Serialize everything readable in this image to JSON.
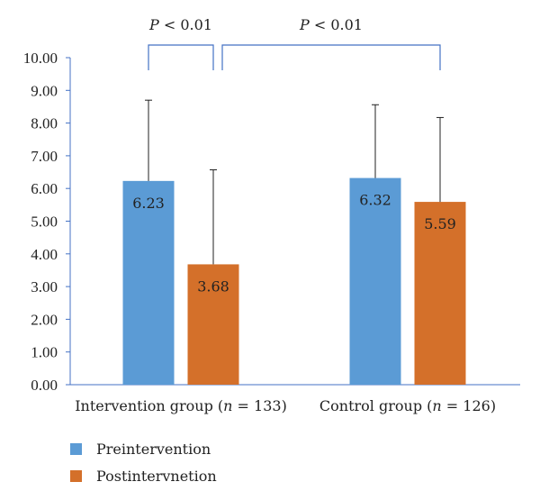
{
  "chart_data": {
    "type": "bar",
    "categories": [
      "Intervention group (n = 133)",
      "Control group (n = 126)"
    ],
    "category_parts": [
      {
        "prefix": "Intervention group (",
        "n": "n",
        "suffix": " = 133)"
      },
      {
        "prefix": "Control group (",
        "n": "n",
        "suffix": " = 126)"
      }
    ],
    "series": [
      {
        "name": "Preintervention",
        "color": "#5b9bd5",
        "values": [
          6.23,
          6.32
        ],
        "labels": [
          "6.23",
          "6.32"
        ],
        "error_upper": [
          8.7,
          8.56
        ]
      },
      {
        "name": "Postintervnetion",
        "color": "#d4702a",
        "values": [
          3.68,
          5.59
        ],
        "labels": [
          "3.68",
          "5.59"
        ],
        "error_upper": [
          6.57,
          8.17
        ]
      }
    ],
    "ylim": [
      0,
      10
    ],
    "yticks": [
      "0.00",
      "1.00",
      "2.00",
      "3.00",
      "4.00",
      "5.00",
      "6.00",
      "7.00",
      "8.00",
      "9.00",
      "10.00"
    ],
    "annotations": [
      {
        "p": "P",
        "text": " < 0.01",
        "from": "Intervention group Preintervention",
        "to": "Intervention group Postintervnetion"
      },
      {
        "p": "P",
        "text": " < 0.01",
        "from": "Intervention group Postintervnetion",
        "to": "Control group Postintervnetion"
      }
    ],
    "bracket_color": "#4472c4",
    "legend_position": "bottom-left",
    "grid": false
  }
}
